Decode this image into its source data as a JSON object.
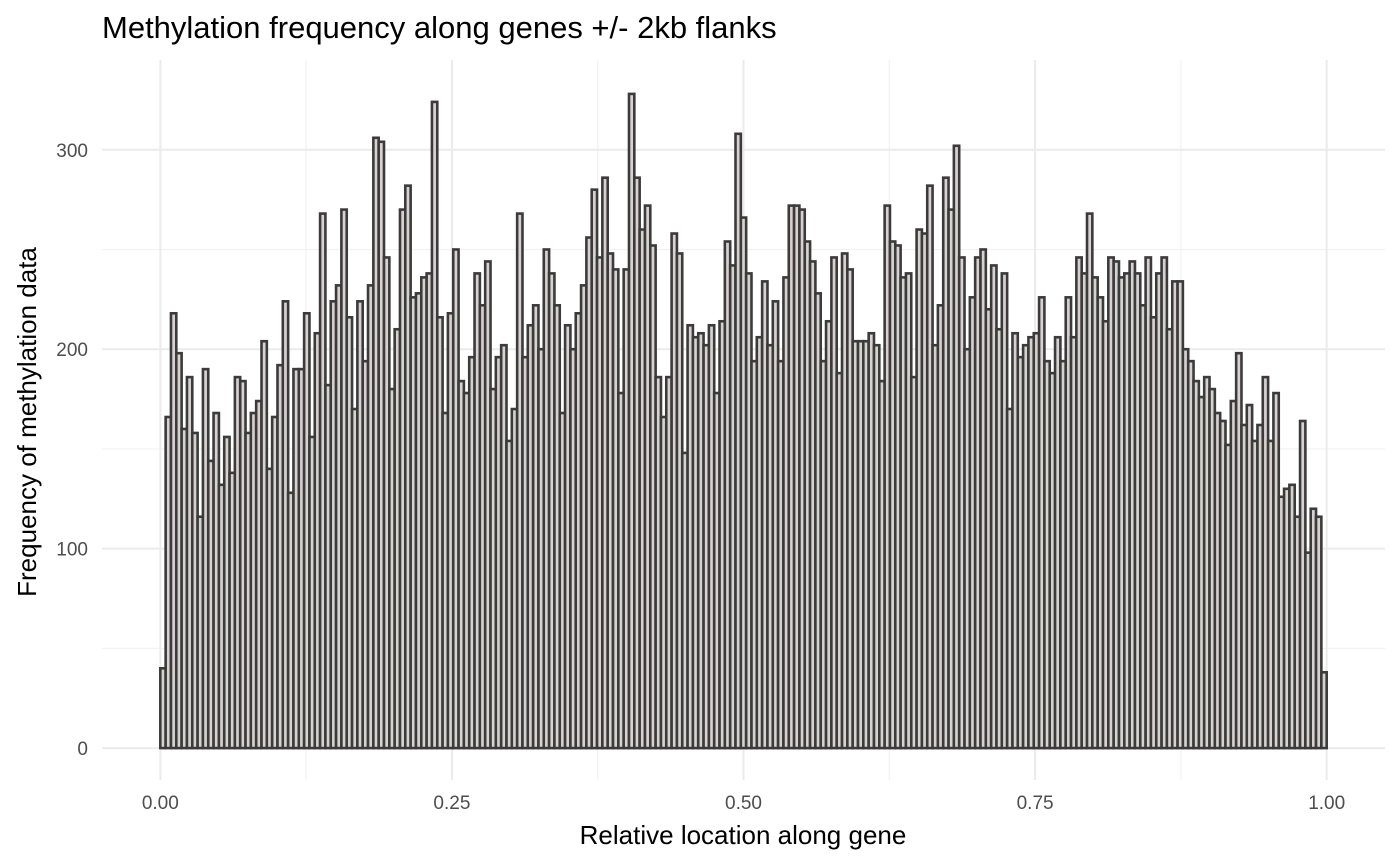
{
  "chart_data": {
    "type": "bar",
    "title": "Methylation frequency along genes +/- 2kb flanks",
    "xlabel": "Relative location along gene",
    "ylabel": "Frequency of methylation data",
    "x_ticks": [
      {
        "value": 0.0,
        "label": "0.00"
      },
      {
        "value": 0.25,
        "label": "0.25"
      },
      {
        "value": 0.5,
        "label": "0.50"
      },
      {
        "value": 0.75,
        "label": "0.75"
      },
      {
        "value": 1.0,
        "label": "1.00"
      }
    ],
    "y_ticks": [
      {
        "value": 0,
        "label": "0"
      },
      {
        "value": 100,
        "label": "100"
      },
      {
        "value": 200,
        "label": "200"
      },
      {
        "value": 300,
        "label": "300"
      }
    ],
    "xlim": [
      -0.05,
      1.05
    ],
    "ylim": [
      -16,
      345
    ],
    "bin_range": [
      0,
      1
    ],
    "grid": true,
    "bar_fill": "#d8d1d1",
    "bar_outline": "#3b3b3b",
    "values": [
      40,
      166,
      218,
      198,
      160,
      186,
      158,
      116,
      190,
      144,
      168,
      132,
      156,
      138,
      186,
      184,
      158,
      168,
      174,
      204,
      140,
      166,
      192,
      224,
      128,
      190,
      190,
      218,
      156,
      208,
      268,
      182,
      224,
      232,
      270,
      216,
      170,
      224,
      194,
      232,
      306,
      304,
      246,
      180,
      210,
      270,
      282,
      226,
      228,
      236,
      238,
      324,
      216,
      168,
      218,
      250,
      184,
      178,
      196,
      238,
      222,
      244,
      180,
      196,
      202,
      154,
      170,
      268,
      196,
      212,
      222,
      200,
      250,
      238,
      222,
      168,
      212,
      200,
      218,
      232,
      256,
      280,
      246,
      286,
      248,
      240,
      178,
      240,
      328,
      286,
      260,
      272,
      252,
      186,
      166,
      186,
      258,
      248,
      148,
      212,
      206,
      208,
      202,
      212,
      178,
      214,
      254,
      242,
      308,
      266,
      238,
      194,
      206,
      234,
      202,
      224,
      194,
      236,
      272,
      272,
      270,
      254,
      244,
      228,
      194,
      214,
      246,
      188,
      248,
      240,
      204,
      204,
      204,
      208,
      202,
      184,
      272,
      254,
      252,
      236,
      238,
      186,
      260,
      258,
      282,
      202,
      222,
      286,
      270,
      302,
      246,
      200,
      226,
      246,
      250,
      220,
      242,
      210,
      238,
      170,
      208,
      196,
      202,
      206,
      208,
      226,
      194,
      188,
      206,
      194,
      226,
      206,
      246,
      238,
      268,
      236,
      226,
      214,
      246,
      244,
      236,
      238,
      244,
      238,
      222,
      246,
      216,
      238,
      246,
      210,
      234,
      234,
      200,
      194,
      184,
      176,
      186,
      180,
      168,
      164,
      152,
      174,
      198,
      162,
      172,
      154,
      162,
      186,
      154,
      178,
      126,
      130,
      132,
      116,
      164,
      98,
      120,
      116,
      38
    ]
  }
}
